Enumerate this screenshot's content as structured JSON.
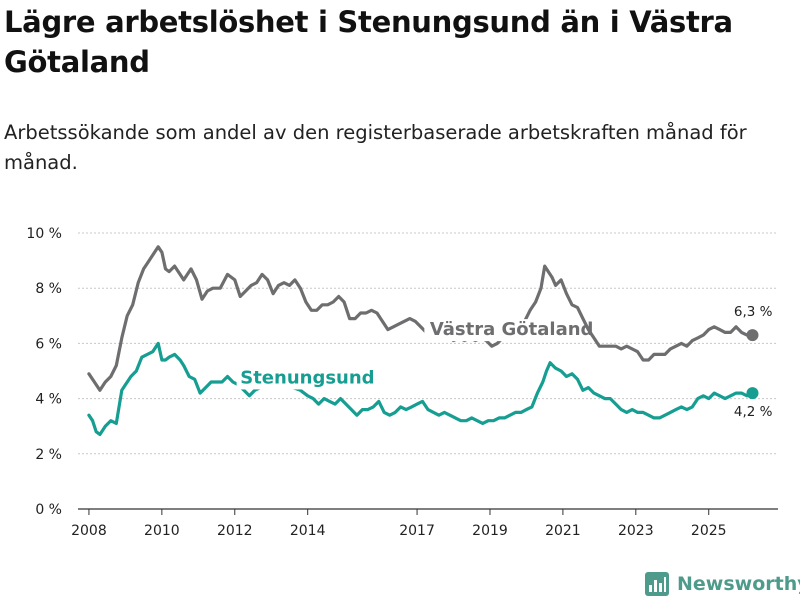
{
  "header": {
    "title": "Lägre arbetslöshet i Stenungsund än i Västra Götaland",
    "subtitle": "Arbetssökande som andel av den registerbaserade arbetskraften månad för månad."
  },
  "brand": {
    "name": "Newsworthy",
    "color": "#4e9b8c"
  },
  "colors": {
    "vg": "#6e6e70",
    "sten": "#159e91",
    "grid": "#c8c8c8",
    "axis": "#333333"
  },
  "chart_data": {
    "type": "line",
    "title": "Lägre arbetslöshet i Stenungsund än i Västra Götaland",
    "ylim": [
      0,
      10
    ],
    "yticks": [
      0,
      2,
      4,
      6,
      8,
      10
    ],
    "ytick_labels": [
      "0 %",
      "2 %",
      "4 %",
      "6 %",
      "8 %",
      "10 %"
    ],
    "xlim": [
      2007.7,
      2026.9
    ],
    "xticks": [
      2008,
      2010,
      2012,
      2014,
      2017,
      2019,
      2021,
      2023,
      2025
    ],
    "xtick_labels": [
      "2008",
      "2010",
      "2012",
      "2014",
      "2017",
      "2019",
      "2021",
      "2023",
      "2025"
    ],
    "grid": true,
    "series": [
      {
        "name": "Västra Götaland",
        "color": "#6e6e70",
        "end_label": "6,3 %",
        "x": [
          2008.0,
          2008.15,
          2008.3,
          2008.45,
          2008.6,
          2008.75,
          2008.9,
          2009.05,
          2009.2,
          2009.35,
          2009.5,
          2009.6,
          2009.75,
          2009.9,
          2010.0,
          2010.1,
          2010.2,
          2010.35,
          2010.5,
          2010.6,
          2010.8,
          2010.95,
          2011.1,
          2011.25,
          2011.4,
          2011.6,
          2011.8,
          2012.0,
          2012.15,
          2012.3,
          2012.45,
          2012.6,
          2012.75,
          2012.9,
          2013.05,
          2013.2,
          2013.35,
          2013.5,
          2013.65,
          2013.8,
          2013.95,
          2014.1,
          2014.25,
          2014.4,
          2014.55,
          2014.7,
          2014.85,
          2015.0,
          2015.15,
          2015.3,
          2015.45,
          2015.6,
          2015.75,
          2015.9,
          2016.05,
          2016.2,
          2016.35,
          2016.5,
          2016.65,
          2016.8,
          2016.95,
          2017.1,
          2017.25,
          2017.4,
          2017.55,
          2017.7,
          2017.85,
          2018.0,
          2018.15,
          2018.3,
          2018.45,
          2018.6,
          2018.75,
          2018.9,
          2019.05,
          2019.2,
          2019.35,
          2019.5,
          2019.65,
          2019.8,
          2019.95,
          2020.1,
          2020.25,
          2020.4,
          2020.5,
          2020.6,
          2020.7,
          2020.8,
          2020.95,
          2021.1,
          2021.25,
          2021.4,
          2021.55,
          2021.7,
          2021.85,
          2022.0,
          2022.15,
          2022.3,
          2022.45,
          2022.6,
          2022.75,
          2022.9,
          2023.05,
          2023.2,
          2023.35,
          2023.5,
          2023.65,
          2023.8,
          2023.95,
          2024.1,
          2024.25,
          2024.4,
          2024.55,
          2024.7,
          2024.85,
          2025.0,
          2025.15,
          2025.3,
          2025.45,
          2025.6,
          2025.75,
          2025.9,
          2026.05,
          2026.2
        ],
        "values": [
          4.9,
          4.6,
          4.3,
          4.6,
          4.8,
          5.2,
          6.2,
          7.0,
          7.4,
          8.2,
          8.7,
          8.9,
          9.2,
          9.5,
          9.3,
          8.7,
          8.6,
          8.8,
          8.5,
          8.3,
          8.7,
          8.3,
          7.6,
          7.9,
          8.0,
          8.0,
          8.5,
          8.3,
          7.7,
          7.9,
          8.1,
          8.2,
          8.5,
          8.3,
          7.8,
          8.1,
          8.2,
          8.1,
          8.3,
          8.0,
          7.5,
          7.2,
          7.2,
          7.4,
          7.4,
          7.5,
          7.7,
          7.5,
          6.9,
          6.9,
          7.1,
          7.1,
          7.2,
          7.1,
          6.8,
          6.5,
          6.6,
          6.7,
          6.8,
          6.9,
          6.8,
          6.6,
          6.4,
          6.5,
          6.4,
          6.3,
          6.3,
          6.1,
          6.2,
          6.1,
          6.2,
          6.1,
          6.2,
          6.1,
          5.9,
          6.0,
          6.2,
          6.4,
          6.5,
          6.6,
          6.8,
          7.2,
          7.5,
          8.0,
          8.8,
          8.6,
          8.4,
          8.1,
          8.3,
          7.8,
          7.4,
          7.3,
          6.9,
          6.5,
          6.2,
          5.9,
          5.9,
          5.9,
          5.9,
          5.8,
          5.9,
          5.8,
          5.7,
          5.4,
          5.4,
          5.6,
          5.6,
          5.6,
          5.8,
          5.9,
          6.0,
          5.9,
          6.1,
          6.2,
          6.3,
          6.5,
          6.6,
          6.5,
          6.4,
          6.4,
          6.6,
          6.4,
          6.3,
          6.3
        ]
      },
      {
        "name": "Stenungsund",
        "color": "#159e91",
        "end_label": "4,2 %",
        "x": [
          2008.0,
          2008.1,
          2008.2,
          2008.3,
          2008.45,
          2008.6,
          2008.75,
          2008.9,
          2009.0,
          2009.15,
          2009.3,
          2009.45,
          2009.6,
          2009.75,
          2009.9,
          2010.0,
          2010.1,
          2010.2,
          2010.35,
          2010.5,
          2010.6,
          2010.75,
          2010.9,
          2011.05,
          2011.2,
          2011.35,
          2011.5,
          2011.65,
          2011.8,
          2011.95,
          2012.1,
          2012.25,
          2012.4,
          2012.55,
          2012.7,
          2012.85,
          2013.0,
          2013.2,
          2013.4,
          2013.6,
          2013.8,
          2014.0,
          2014.15,
          2014.3,
          2014.45,
          2014.6,
          2014.75,
          2014.9,
          2015.05,
          2015.2,
          2015.35,
          2015.5,
          2015.65,
          2015.8,
          2015.95,
          2016.1,
          2016.25,
          2016.4,
          2016.55,
          2016.7,
          2016.85,
          2017.0,
          2017.15,
          2017.3,
          2017.45,
          2017.6,
          2017.75,
          2017.9,
          2018.05,
          2018.2,
          2018.35,
          2018.5,
          2018.65,
          2018.8,
          2018.95,
          2019.1,
          2019.25,
          2019.4,
          2019.55,
          2019.7,
          2019.85,
          2020.0,
          2020.15,
          2020.3,
          2020.45,
          2020.55,
          2020.65,
          2020.8,
          2020.95,
          2021.1,
          2021.25,
          2021.4,
          2021.55,
          2021.7,
          2021.85,
          2022.0,
          2022.15,
          2022.3,
          2022.45,
          2022.6,
          2022.75,
          2022.9,
          2023.05,
          2023.2,
          2023.35,
          2023.5,
          2023.65,
          2023.8,
          2023.95,
          2024.1,
          2024.25,
          2024.4,
          2024.55,
          2024.7,
          2024.85,
          2025.0,
          2025.15,
          2025.3,
          2025.45,
          2025.6,
          2025.75,
          2025.9,
          2026.05,
          2026.2
        ],
        "values": [
          3.4,
          3.2,
          2.8,
          2.7,
          3.0,
          3.2,
          3.1,
          4.3,
          4.5,
          4.8,
          5.0,
          5.5,
          5.6,
          5.7,
          6.0,
          5.4,
          5.4,
          5.5,
          5.6,
          5.4,
          5.2,
          4.8,
          4.7,
          4.2,
          4.4,
          4.6,
          4.6,
          4.6,
          4.8,
          4.6,
          4.5,
          4.3,
          4.1,
          4.3,
          4.4,
          4.5,
          4.5,
          4.4,
          4.5,
          4.4,
          4.3,
          4.1,
          4.0,
          3.8,
          4.0,
          3.9,
          3.8,
          4.0,
          3.8,
          3.6,
          3.4,
          3.6,
          3.6,
          3.7,
          3.9,
          3.5,
          3.4,
          3.5,
          3.7,
          3.6,
          3.7,
          3.8,
          3.9,
          3.6,
          3.5,
          3.4,
          3.5,
          3.4,
          3.3,
          3.2,
          3.2,
          3.3,
          3.2,
          3.1,
          3.2,
          3.2,
          3.3,
          3.3,
          3.4,
          3.5,
          3.5,
          3.6,
          3.7,
          4.2,
          4.6,
          5.0,
          5.3,
          5.1,
          5.0,
          4.8,
          4.9,
          4.7,
          4.3,
          4.4,
          4.2,
          4.1,
          4.0,
          4.0,
          3.8,
          3.6,
          3.5,
          3.6,
          3.5,
          3.5,
          3.4,
          3.3,
          3.3,
          3.4,
          3.5,
          3.6,
          3.7,
          3.6,
          3.7,
          4.0,
          4.1,
          4.0,
          4.2,
          4.1,
          4.0,
          4.1,
          4.2,
          4.2,
          4.1,
          4.2
        ]
      }
    ]
  }
}
